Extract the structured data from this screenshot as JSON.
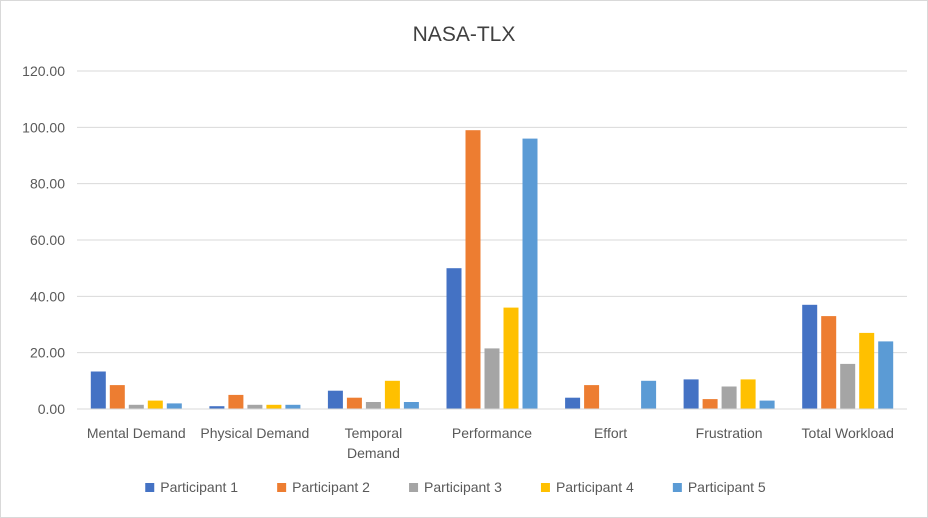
{
  "chart_data": {
    "type": "bar",
    "title": "NASA-TLX",
    "xlabel": "",
    "ylabel": "",
    "ylim": [
      0,
      120
    ],
    "yticks": [
      "0.00",
      "20.00",
      "40.00",
      "60.00",
      "80.00",
      "100.00",
      "120.00"
    ],
    "grid": true,
    "legend_position": "bottom",
    "categories": [
      [
        "Mental Demand"
      ],
      [
        "Physical Demand"
      ],
      [
        "Temporal",
        "Demand"
      ],
      [
        "Performance"
      ],
      [
        "Effort"
      ],
      [
        "Frustration"
      ],
      [
        "Total Workload"
      ]
    ],
    "series": [
      {
        "name": "Participant 1",
        "color": "#4472C4",
        "values": [
          13.3,
          1.0,
          6.5,
          50.0,
          4.0,
          10.5,
          37.0
        ]
      },
      {
        "name": "Participant 2",
        "color": "#ED7D31",
        "values": [
          8.5,
          5.0,
          4.0,
          99.0,
          8.5,
          3.5,
          33.0
        ]
      },
      {
        "name": "Participant 3",
        "color": "#A5A5A5",
        "values": [
          1.5,
          1.5,
          2.5,
          21.5,
          0.0,
          8.0,
          16.0
        ]
      },
      {
        "name": "Participant 4",
        "color": "#FFC000",
        "values": [
          3.0,
          1.5,
          10.0,
          36.0,
          0.0,
          10.5,
          27.0
        ]
      },
      {
        "name": "Participant 5",
        "color": "#5B9BD5",
        "values": [
          2.0,
          1.5,
          2.5,
          96.0,
          10.0,
          3.0,
          24.0
        ]
      }
    ]
  }
}
